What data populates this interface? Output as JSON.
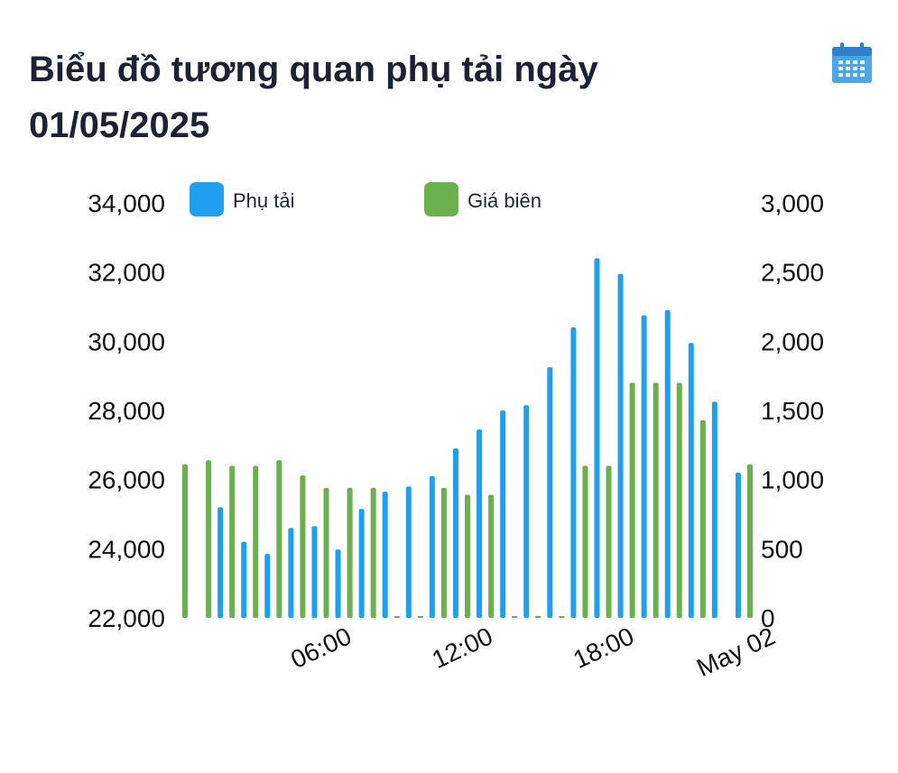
{
  "header": {
    "title_line1": "Biểu đồ tương quan phụ tải ngày",
    "title_line2": "01/05/2025",
    "calendar_icon": "calendar-icon"
  },
  "chart_data": {
    "type": "bar",
    "title": "Biểu đồ tương quan phụ tải ngày 01/05/2025",
    "x_ticks": [
      "06:00",
      "12:00",
      "18:00",
      "May 02"
    ],
    "y_left": {
      "range": [
        22000,
        34000
      ],
      "ticks": [
        "22,000",
        "24,000",
        "26,000",
        "28,000",
        "30,000",
        "32,000",
        "34,000"
      ]
    },
    "y_right": {
      "range": [
        0,
        3000
      ],
      "ticks": [
        "0",
        "500",
        "1,000",
        "1,500",
        "2,000",
        "2,500",
        "3,000"
      ]
    },
    "legend_position": "top",
    "series": [
      {
        "name": "Phụ tải",
        "axis": "left",
        "color": "#1e9ff2",
        "values": [
          null,
          25200,
          24200,
          23850,
          24600,
          24650,
          23980,
          25150,
          25650,
          25800,
          26100,
          26900,
          27450,
          28000,
          28150,
          29250,
          30400,
          32400,
          31950,
          30750,
          30900,
          29950,
          28250,
          26200,
          null
        ]
      },
      {
        "name": "Giá biên",
        "axis": "right",
        "color": "#6ab04c",
        "values": [
          1110,
          1140,
          1100,
          1100,
          1140,
          1030,
          940,
          940,
          940,
          0,
          0,
          940,
          890,
          890,
          0,
          0,
          0,
          1100,
          1100,
          1700,
          1700,
          1700,
          1430,
          null,
          1110
        ]
      }
    ]
  }
}
